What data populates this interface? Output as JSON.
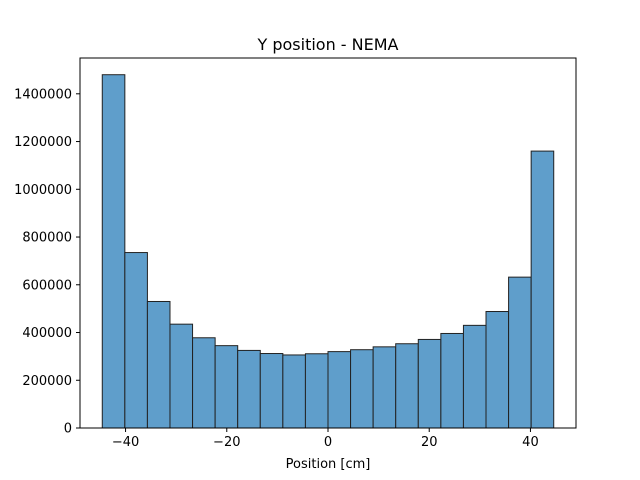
{
  "chart_data": {
    "type": "bar",
    "title": "Y position - NEMA",
    "xlabel": "Position [cm]",
    "ylabel": "",
    "xlim": [
      -49,
      49
    ],
    "ylim": [
      0,
      1550000
    ],
    "x_ticks": [
      -40,
      -20,
      0,
      20,
      40
    ],
    "x_tick_labels": [
      "−40",
      "−20",
      "0",
      "20",
      "40"
    ],
    "y_ticks": [
      0,
      200000,
      400000,
      600000,
      800000,
      1000000,
      1200000,
      1400000
    ],
    "y_tick_labels": [
      "0",
      "200000",
      "400000",
      "600000",
      "800000",
      "1000000",
      "1200000",
      "1400000"
    ],
    "bin_edges": [
      -44.6,
      -40.14,
      -35.68,
      -31.22,
      -26.76,
      -22.3,
      -17.84,
      -13.38,
      -8.92,
      -4.46,
      0,
      4.46,
      8.92,
      13.38,
      17.84,
      22.3,
      26.76,
      31.22,
      35.68,
      40.14,
      44.6
    ],
    "values": [
      1480000,
      735000,
      530000,
      435000,
      378000,
      345000,
      325000,
      312000,
      306000,
      311000,
      320000,
      328000,
      340000,
      353000,
      371000,
      396000,
      430000,
      488000,
      632000,
      1160000
    ],
    "bar_color": "#5f9ecb",
    "edge_color": "#222222",
    "grid": false
  }
}
